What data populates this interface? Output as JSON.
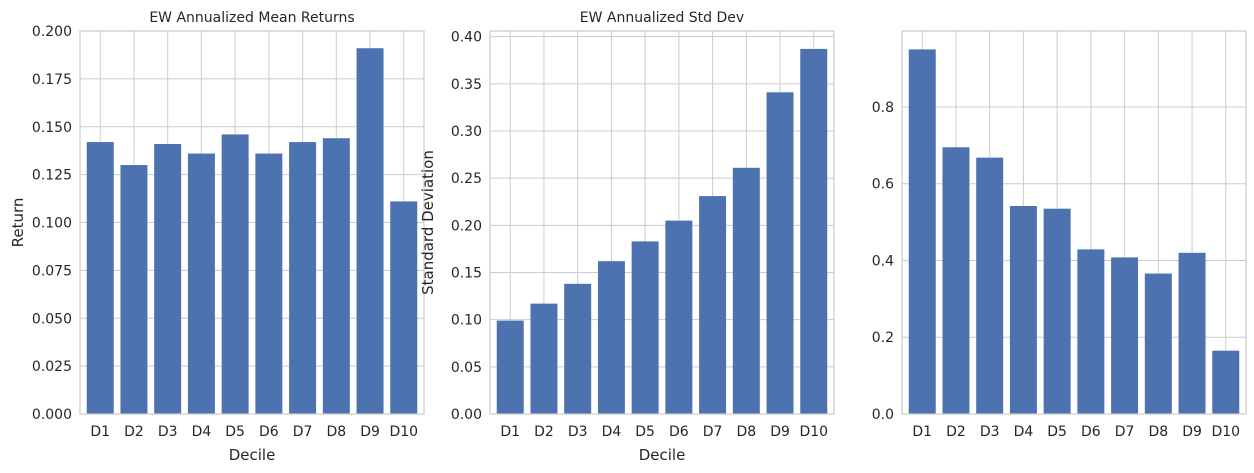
{
  "chart_data": [
    {
      "type": "bar",
      "title": "EW Annualized Mean Returns",
      "xlabel": "Decile",
      "ylabel": "Return",
      "categories": [
        "D1",
        "D2",
        "D3",
        "D4",
        "D5",
        "D6",
        "D7",
        "D8",
        "D9",
        "D10"
      ],
      "values": [
        0.142,
        0.13,
        0.141,
        0.136,
        0.146,
        0.136,
        0.142,
        0.144,
        0.191,
        0.111
      ],
      "ylim": [
        0,
        0.2
      ],
      "yticks": [
        0.0,
        0.025,
        0.05,
        0.075,
        0.1,
        0.125,
        0.15,
        0.175,
        0.2
      ],
      "ytick_labels": [
        "0.000",
        "0.025",
        "0.050",
        "0.075",
        "0.100",
        "0.125",
        "0.150",
        "0.175",
        "0.200"
      ],
      "grid": true,
      "color": "#4c72b0"
    },
    {
      "type": "bar",
      "title": "EW Annualized Std Dev",
      "xlabel": "Decile",
      "ylabel": "Standard Deviation",
      "categories": [
        "D1",
        "D2",
        "D3",
        "D4",
        "D5",
        "D6",
        "D7",
        "D8",
        "D9",
        "D10"
      ],
      "values": [
        0.099,
        0.117,
        0.138,
        0.162,
        0.183,
        0.205,
        0.231,
        0.261,
        0.341,
        0.387
      ],
      "ylim": [
        0,
        0.406
      ],
      "yticks": [
        0.0,
        0.05,
        0.1,
        0.15,
        0.2,
        0.25,
        0.3,
        0.35,
        0.4
      ],
      "ytick_labels": [
        "0.00",
        "0.05",
        "0.10",
        "0.15",
        "0.20",
        "0.25",
        "0.30",
        "0.35",
        "0.40"
      ],
      "grid": true,
      "color": "#4c72b0"
    },
    {
      "type": "bar",
      "title": "",
      "xlabel": "",
      "ylabel": "",
      "categories": [
        "D1",
        "D2",
        "D3",
        "D4",
        "D5",
        "D6",
        "D7",
        "D8",
        "D9",
        "D10"
      ],
      "values": [
        0.95,
        0.695,
        0.668,
        0.542,
        0.535,
        0.429,
        0.408,
        0.366,
        0.42,
        0.165
      ],
      "ylim": [
        0,
        0.998
      ],
      "yticks": [
        0.0,
        0.2,
        0.4,
        0.6,
        0.8
      ],
      "ytick_labels": [
        "0.0",
        "0.2",
        "0.4",
        "0.6",
        "0.8"
      ],
      "grid": true,
      "color": "#4c72b0"
    }
  ]
}
